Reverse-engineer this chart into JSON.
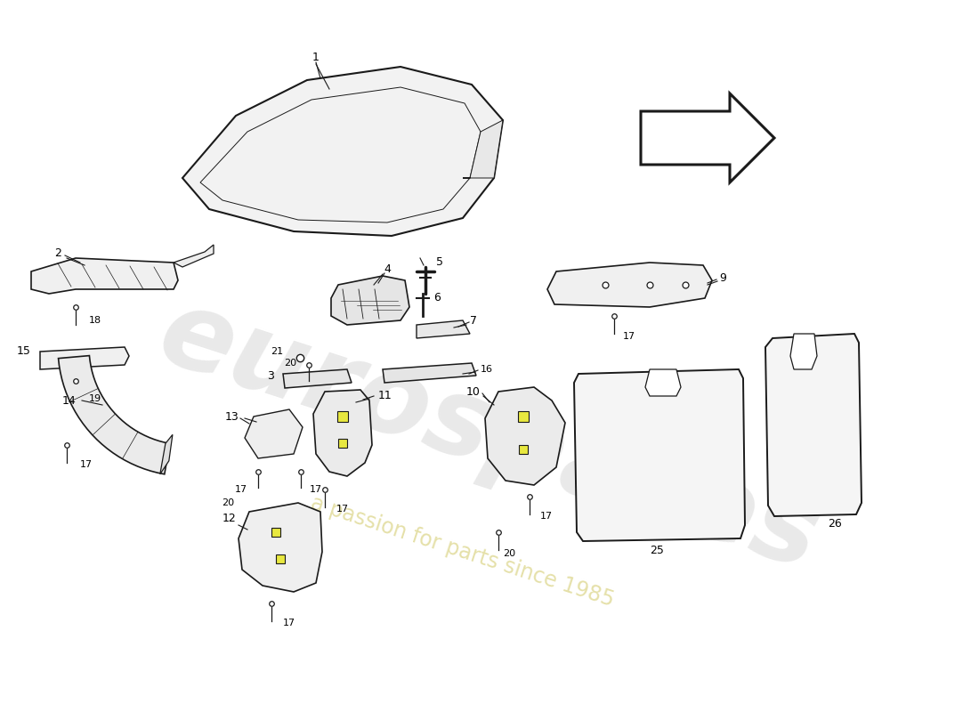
{
  "background_color": "#ffffff",
  "line_color": "#1a1a1a",
  "watermark1": "eurospares",
  "watermark2": "a passion for parts since 1985",
  "wm_color1": "#b8b8b8",
  "wm_color2": "#d4cc70",
  "fig_w": 11.0,
  "fig_h": 8.0,
  "dpi": 100
}
